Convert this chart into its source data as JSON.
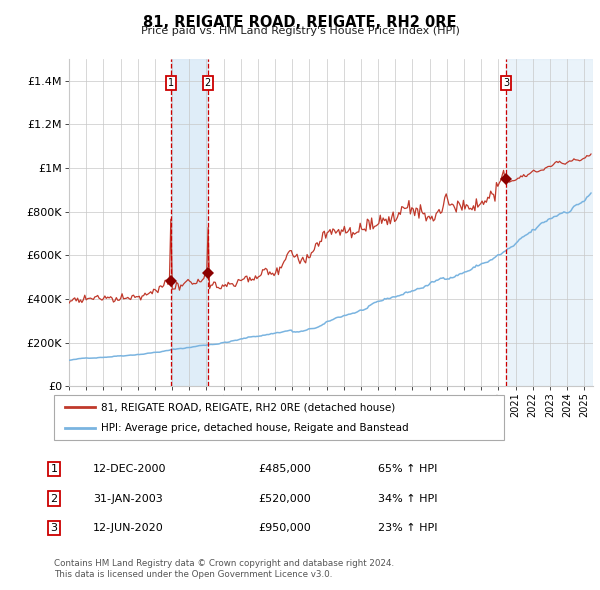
{
  "title": "81, REIGATE ROAD, REIGATE, RH2 0RE",
  "subtitle": "Price paid vs. HM Land Registry's House Price Index (HPI)",
  "legend_line1": "81, REIGATE ROAD, REIGATE, RH2 0RE (detached house)",
  "legend_line2": "HPI: Average price, detached house, Reigate and Banstead",
  "footer1": "Contains HM Land Registry data © Crown copyright and database right 2024.",
  "footer2": "This data is licensed under the Open Government Licence v3.0.",
  "transactions": [
    {
      "label": "1",
      "date": "12-DEC-2000",
      "price": "£485,000",
      "pct": "65% ↑ HPI",
      "x_year": 2000.95,
      "y_val": 485000
    },
    {
      "label": "2",
      "date": "31-JAN-2003",
      "price": "£520,000",
      "pct": "34% ↑ HPI",
      "x_year": 2003.08,
      "y_val": 520000
    },
    {
      "label": "3",
      "date": "12-JUN-2020",
      "price": "£950,000",
      "pct": "23% ↑ HPI",
      "x_year": 2020.45,
      "y_val": 950000
    }
  ],
  "hpi_color": "#7ab4e0",
  "price_color": "#c0392b",
  "marker_color": "#8b0000",
  "shade_color": "#daeaf7",
  "vline_color": "#cc0000",
  "grid_color": "#c8c8c8",
  "ylim": [
    0,
    1500000
  ],
  "yticks": [
    0,
    200000,
    400000,
    600000,
    800000,
    1000000,
    1200000,
    1400000
  ],
  "ytick_labels": [
    "£0",
    "£200K",
    "£400K",
    "£600K",
    "£800K",
    "£1M",
    "£1.2M",
    "£1.4M"
  ],
  "xstart": 1995.0,
  "xend": 2025.5,
  "xticks": [
    1995,
    1996,
    1997,
    1998,
    1999,
    2000,
    2001,
    2002,
    2003,
    2004,
    2005,
    2006,
    2007,
    2008,
    2009,
    2010,
    2011,
    2012,
    2013,
    2014,
    2015,
    2016,
    2017,
    2018,
    2019,
    2020,
    2021,
    2022,
    2023,
    2024,
    2025
  ]
}
